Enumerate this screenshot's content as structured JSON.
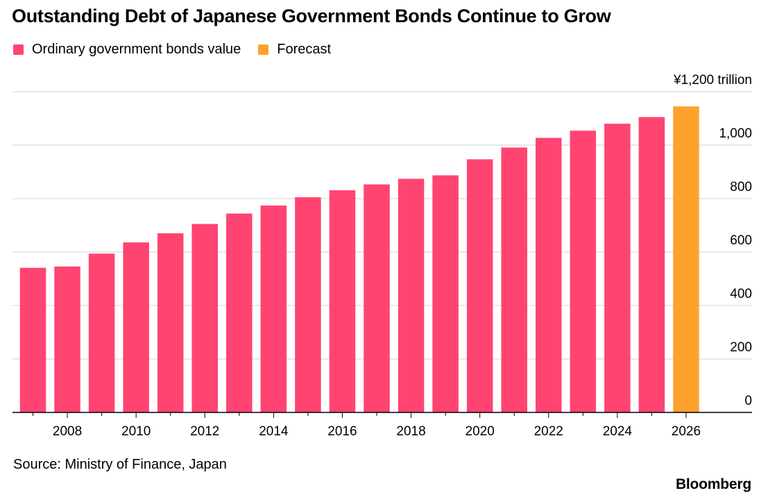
{
  "title": "Outstanding Debt of Japanese Government Bonds Continue to Grow",
  "legend": [
    {
      "label": "Ordinary government bonds value",
      "color": "#ff4472"
    },
    {
      "label": "Forecast",
      "color": "#ffa12e"
    }
  ],
  "source": "Source: Ministry of Finance, Japan",
  "brand": "Bloomberg",
  "chart_data": {
    "type": "bar",
    "categories": [
      "2007",
      "2008",
      "2009",
      "2010",
      "2011",
      "2012",
      "2013",
      "2014",
      "2015",
      "2016",
      "2017",
      "2018",
      "2019",
      "2020",
      "2021",
      "2022",
      "2023",
      "2024",
      "2025",
      "2026"
    ],
    "x_tick_labels": [
      "2008",
      "2010",
      "2012",
      "2014",
      "2016",
      "2018",
      "2020",
      "2022",
      "2024",
      "2026"
    ],
    "series": [
      {
        "name": "Ordinary government bonds value",
        "color": "#ff4472",
        "values": [
          541,
          546,
          594,
          636,
          670,
          705,
          744,
          774,
          805,
          831,
          853,
          874,
          887,
          947,
          991,
          1027,
          1054,
          1080,
          1105,
          null
        ]
      },
      {
        "name": "Forecast",
        "color": "#ffa12e",
        "values": [
          null,
          null,
          null,
          null,
          null,
          null,
          null,
          null,
          null,
          null,
          null,
          null,
          null,
          null,
          null,
          null,
          null,
          null,
          null,
          1145
        ]
      }
    ],
    "y_axis": {
      "position": "right",
      "ylim": [
        0,
        1200
      ],
      "ticks": [
        0,
        200,
        400,
        600,
        800,
        1000,
        1200
      ],
      "tick_labels": [
        "0",
        "200",
        "400",
        "600",
        "800",
        "1,000",
        "¥1,200 trillion"
      ]
    },
    "grid": true
  }
}
